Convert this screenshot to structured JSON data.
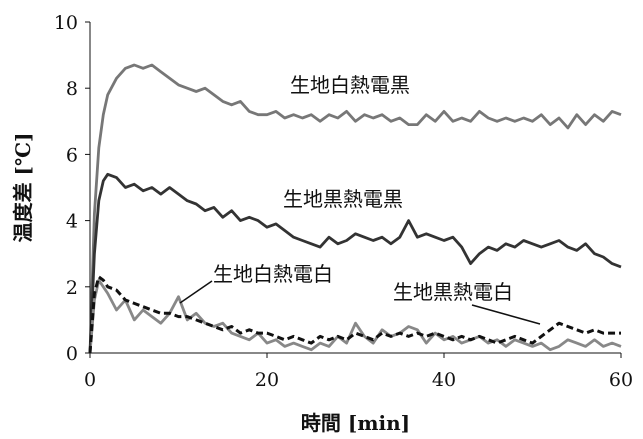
{
  "chart_data": {
    "type": "line",
    "xlabel": "時間 [min]",
    "ylabel": "温度差 [℃]",
    "xlim": [
      0,
      60
    ],
    "ylim": [
      0,
      10
    ],
    "xticks": [
      0,
      20,
      40,
      60
    ],
    "yticks": [
      0,
      2,
      4,
      6,
      8,
      10
    ],
    "grid": false,
    "series": [
      {
        "name": "生地白熱電黒",
        "color": "#777777",
        "style": "solid",
        "x": [
          0,
          0.5,
          1,
          1.5,
          2,
          3,
          4,
          5,
          6,
          7,
          8,
          9,
          10,
          11,
          12,
          13,
          14,
          15,
          16,
          17,
          18,
          19,
          20,
          21,
          22,
          23,
          24,
          25,
          26,
          27,
          28,
          29,
          30,
          31,
          32,
          33,
          34,
          35,
          36,
          37,
          38,
          39,
          40,
          41,
          42,
          43,
          44,
          45,
          46,
          47,
          48,
          49,
          50,
          51,
          52,
          53,
          54,
          55,
          56,
          57,
          58,
          59,
          60
        ],
        "values": [
          0,
          4.2,
          6.2,
          7.2,
          7.8,
          8.3,
          8.6,
          8.7,
          8.6,
          8.7,
          8.5,
          8.3,
          8.1,
          8.0,
          7.9,
          8.0,
          7.8,
          7.6,
          7.5,
          7.6,
          7.3,
          7.2,
          7.2,
          7.3,
          7.1,
          7.2,
          7.1,
          7.2,
          7.0,
          7.2,
          7.1,
          7.3,
          7.0,
          7.2,
          7.1,
          7.2,
          7.0,
          7.1,
          6.9,
          6.9,
          7.2,
          7.0,
          7.3,
          7.0,
          7.1,
          7.0,
          7.3,
          7.1,
          7.0,
          7.1,
          7.0,
          7.1,
          7.0,
          7.2,
          6.9,
          7.1,
          6.8,
          7.2,
          6.9,
          7.2,
          7.0,
          7.3,
          7.2
        ]
      },
      {
        "name": "生地黒熱電黒",
        "color": "#333333",
        "style": "solid",
        "x": [
          0,
          0.5,
          1,
          1.5,
          2,
          3,
          4,
          5,
          6,
          7,
          8,
          9,
          10,
          11,
          12,
          13,
          14,
          15,
          16,
          17,
          18,
          19,
          20,
          21,
          22,
          23,
          24,
          25,
          26,
          27,
          28,
          29,
          30,
          31,
          32,
          33,
          34,
          35,
          36,
          37,
          38,
          39,
          40,
          41,
          42,
          43,
          44,
          45,
          46,
          47,
          48,
          49,
          50,
          51,
          52,
          53,
          54,
          55,
          56,
          57,
          58,
          59,
          60
        ],
        "values": [
          0,
          3.0,
          4.6,
          5.2,
          5.4,
          5.3,
          5.0,
          5.1,
          4.9,
          5.0,
          4.8,
          5.0,
          4.8,
          4.6,
          4.5,
          4.3,
          4.4,
          4.1,
          4.3,
          4.0,
          4.1,
          4.0,
          3.8,
          3.9,
          3.7,
          3.5,
          3.4,
          3.3,
          3.2,
          3.5,
          3.3,
          3.4,
          3.6,
          3.5,
          3.4,
          3.5,
          3.3,
          3.5,
          4.0,
          3.5,
          3.6,
          3.5,
          3.4,
          3.5,
          3.2,
          2.7,
          3.0,
          3.2,
          3.1,
          3.3,
          3.2,
          3.4,
          3.3,
          3.2,
          3.3,
          3.4,
          3.2,
          3.1,
          3.3,
          3.0,
          2.9,
          2.7,
          2.6
        ]
      },
      {
        "name": "生地白熱電白",
        "color": "#888888",
        "style": "solid",
        "x": [
          0,
          0.5,
          1,
          1.5,
          2,
          3,
          4,
          5,
          6,
          7,
          8,
          9,
          10,
          11,
          12,
          13,
          14,
          15,
          16,
          17,
          18,
          19,
          20,
          21,
          22,
          23,
          24,
          25,
          26,
          27,
          28,
          29,
          30,
          31,
          32,
          33,
          34,
          35,
          36,
          37,
          38,
          39,
          40,
          41,
          42,
          43,
          44,
          45,
          46,
          47,
          48,
          49,
          50,
          51,
          52,
          53,
          54,
          55,
          56,
          57,
          58,
          59,
          60
        ],
        "values": [
          0,
          1.6,
          2.2,
          2.0,
          1.8,
          1.3,
          1.6,
          1.0,
          1.3,
          1.1,
          0.9,
          1.2,
          1.7,
          1.0,
          1.2,
          0.9,
          0.8,
          0.9,
          0.6,
          0.5,
          0.4,
          0.6,
          0.3,
          0.4,
          0.2,
          0.3,
          0.2,
          0.1,
          0.3,
          0.2,
          0.5,
          0.3,
          0.9,
          0.5,
          0.3,
          0.7,
          0.5,
          0.6,
          0.8,
          0.7,
          0.3,
          0.6,
          0.4,
          0.5,
          0.3,
          0.4,
          0.5,
          0.3,
          0.4,
          0.2,
          0.4,
          0.3,
          0.2,
          0.3,
          0.1,
          0.2,
          0.4,
          0.3,
          0.2,
          0.4,
          0.2,
          0.3,
          0.2
        ]
      },
      {
        "name": "生地黒熱電白",
        "color": "#111111",
        "style": "dashed",
        "x": [
          0,
          0.5,
          1,
          1.5,
          2,
          3,
          4,
          5,
          6,
          7,
          8,
          9,
          10,
          11,
          12,
          13,
          14,
          15,
          16,
          17,
          18,
          19,
          20,
          21,
          22,
          23,
          24,
          25,
          26,
          27,
          28,
          29,
          30,
          31,
          32,
          33,
          34,
          35,
          36,
          37,
          38,
          39,
          40,
          41,
          42,
          43,
          44,
          45,
          46,
          47,
          48,
          49,
          50,
          51,
          52,
          53,
          54,
          55,
          56,
          57,
          58,
          59,
          60
        ],
        "values": [
          0,
          1.8,
          2.3,
          2.2,
          2.0,
          1.9,
          1.6,
          1.5,
          1.4,
          1.3,
          1.2,
          1.2,
          1.1,
          1.1,
          1.0,
          0.9,
          0.8,
          0.7,
          0.8,
          0.6,
          0.7,
          0.6,
          0.6,
          0.5,
          0.4,
          0.5,
          0.4,
          0.3,
          0.5,
          0.4,
          0.5,
          0.4,
          0.6,
          0.5,
          0.4,
          0.6,
          0.5,
          0.6,
          0.5,
          0.6,
          0.5,
          0.6,
          0.5,
          0.4,
          0.5,
          0.4,
          0.5,
          0.4,
          0.3,
          0.4,
          0.5,
          0.4,
          0.3,
          0.5,
          0.7,
          0.9,
          0.8,
          0.7,
          0.6,
          0.7,
          0.6,
          0.6,
          0.6
        ]
      }
    ],
    "annotations": [
      {
        "text": "生地白熱電黒",
        "series": 0
      },
      {
        "text": "生地黒熱電黒",
        "series": 1
      },
      {
        "text": "生地白熱電白",
        "series": 2
      },
      {
        "text": "生地黒熱電白",
        "series": 3
      }
    ]
  }
}
